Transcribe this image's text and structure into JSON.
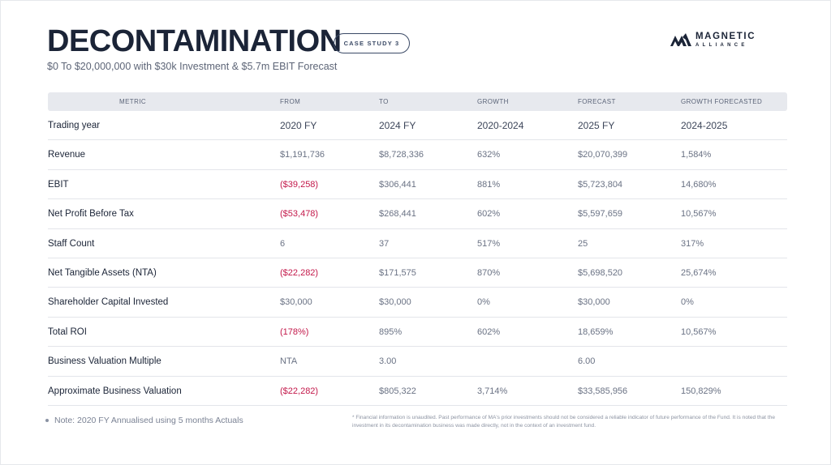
{
  "header": {
    "title": "DECONTAMINATION",
    "badge": "CASE STUDY 3",
    "subtitle": "$0 To $20,000,000 with $30k Investment & $5.7m EBIT Forecast",
    "logo": {
      "word1": "MAGNETIC",
      "word2": "ALLIANCE",
      "icon": "magnetic-alliance-mountain-logo",
      "color": "#1b2437"
    }
  },
  "table": {
    "columns": [
      "METRIC",
      "FROM",
      "TO",
      "GROWTH",
      "FORECAST",
      "GROWTH FORECASTED"
    ],
    "rows": [
      {
        "metric": "Trading year",
        "from": "2020 FY",
        "to": "2024 FY",
        "growth": "2020-2024",
        "forecast": "2025 FY",
        "growth_forecasted": "2024-2025"
      },
      {
        "metric": "Revenue",
        "from": "$1,191,736",
        "to": "$8,728,336",
        "growth": "632%",
        "forecast": "$20,070,399",
        "growth_forecasted": "1,584%"
      },
      {
        "metric": "EBIT",
        "from": "($39,258)",
        "to": "$306,441",
        "growth": "881%",
        "forecast": "$5,723,804",
        "growth_forecasted": "14,680%",
        "from_negative": true
      },
      {
        "metric": "Net Profit Before Tax",
        "from": "($53,478)",
        "to": "$268,441",
        "growth": "602%",
        "forecast": "$5,597,659",
        "growth_forecasted": "10,567%",
        "from_negative": true
      },
      {
        "metric": "Staff Count",
        "from": "6",
        "to": "37",
        "growth": "517%",
        "forecast": "25",
        "growth_forecasted": "317%"
      },
      {
        "metric": "Net Tangible Assets (NTA)",
        "from": "($22,282)",
        "to": "$171,575",
        "growth": "870%",
        "forecast": "$5,698,520",
        "growth_forecasted": "25,674%",
        "from_negative": true
      },
      {
        "metric": "Shareholder Capital Invested",
        "from": "$30,000",
        "to": "$30,000",
        "growth": "0%",
        "forecast": "$30,000",
        "growth_forecasted": "0%"
      },
      {
        "metric": "Total ROI",
        "from": "(178%)",
        "to": "895%",
        "growth": "602%",
        "forecast": "18,659%",
        "growth_forecasted": "10,567%",
        "from_negative": true
      },
      {
        "metric": "Business Valuation Multiple",
        "from": "NTA",
        "to": "3.00",
        "growth": "",
        "forecast": "6.00",
        "growth_forecasted": ""
      },
      {
        "metric": "Approximate Business Valuation",
        "from": "($22,282)",
        "to": "$805,322",
        "growth": "3,714%",
        "forecast": "$33,585,956",
        "growth_forecasted": "150,829%",
        "from_negative": true
      }
    ],
    "negative_color": "#c3184a"
  },
  "footer": {
    "note": "Note: 2020 FY Annualised using 5 months Actuals",
    "disclaimer": "* Financial information is unaudited. Past performance of MA's prior investments should not be considered a reliable indicator of future performance of the Fund. It is noted that the investment in its decontamination business was made directly, not in the context of an investment fund."
  }
}
